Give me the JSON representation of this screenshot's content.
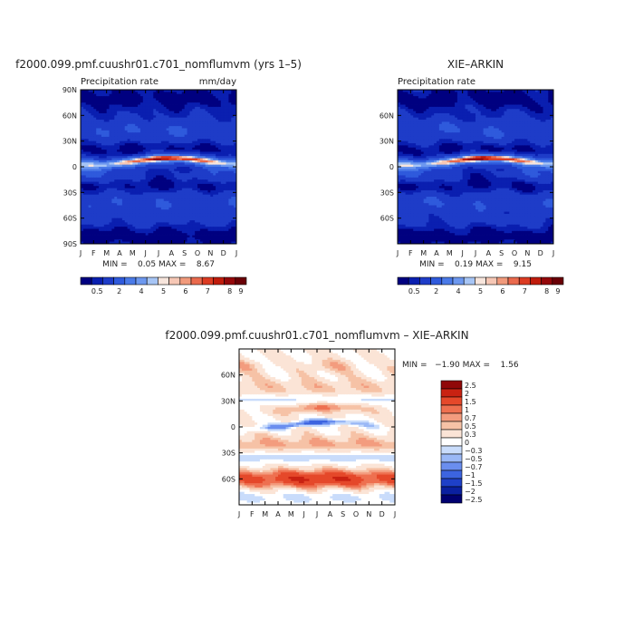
{
  "colors": {
    "precip_scale": [
      "#000080",
      "#0a1fb0",
      "#1e3cc8",
      "#2f5adc",
      "#4a7ae8",
      "#6d98ef",
      "#a7c5f5",
      "#f7e5dc",
      "#f6c7b5",
      "#f19a7c",
      "#ea6a4d",
      "#dc3b22",
      "#c01c0c",
      "#94080a",
      "#6a0006"
    ],
    "diff_scale": [
      "#000070",
      "#0a20a0",
      "#1e40c8",
      "#3c64e0",
      "#6a8eef",
      "#9ab8f6",
      "#c9dcfb",
      "#ffffff",
      "#fbe4d6",
      "#f6c2a6",
      "#f39c7e",
      "#ee7050",
      "#e5482a",
      "#c92212",
      "#900808"
    ]
  },
  "chart_data": [
    {
      "type": "heatmap",
      "title": "f2000.099.pmf.cuushr01.c701_nomflumvm (yrs 1–5)",
      "subtitle": "Precipitation rate",
      "units": "mm/day",
      "stats": "MIN =    0.05 MAX =    8.67",
      "x_ticks": [
        "J",
        "F",
        "M",
        "A",
        "M",
        "J",
        "J",
        "A",
        "S",
        "O",
        "N",
        "D",
        "J"
      ],
      "y_ticks": [
        "90N",
        "60N",
        "30N",
        "0",
        "30S",
        "60S",
        "90S"
      ],
      "y_values": [
        90,
        60,
        30,
        0,
        -30,
        -60,
        -90
      ],
      "ylim": [
        -90,
        90
      ],
      "x_range": [
        0,
        12
      ],
      "colorbar_labels": [
        "0.5",
        "2",
        "4",
        "5",
        "6",
        "7",
        "8",
        "9"
      ],
      "colorbar_label_index": [
        1,
        3,
        5,
        7,
        9,
        11,
        13,
        14
      ],
      "min": 0.05,
      "max": 8.67
    },
    {
      "type": "heatmap",
      "title": "XIE–ARKIN",
      "subtitle": "Precipitation rate",
      "stats": "MIN =    0.19 MAX =    9.15",
      "x_ticks": [
        "J",
        "F",
        "M",
        "A",
        "M",
        "J",
        "J",
        "A",
        "S",
        "O",
        "N",
        "D",
        "J"
      ],
      "y_ticks": [
        "60N",
        "30N",
        "0",
        "30S",
        "60S"
      ],
      "y_values": [
        60,
        30,
        0,
        -30,
        -60
      ],
      "ylim": [
        -90,
        90
      ],
      "x_range": [
        0,
        12
      ],
      "colorbar_labels": [
        "0.5",
        "2",
        "4",
        "5",
        "6",
        "7",
        "8",
        "9"
      ],
      "colorbar_label_index": [
        1,
        3,
        5,
        7,
        9,
        11,
        13,
        14
      ],
      "min": 0.19,
      "max": 9.15
    },
    {
      "type": "heatmap",
      "title": "f2000.099.pmf.cuushr01.c701_nomflumvm – XIE–ARKIN",
      "stats": "MIN =   −1.90 MAX =    1.56",
      "x_ticks": [
        "J",
        "F",
        "M",
        "A",
        "M",
        "J",
        "J",
        "A",
        "S",
        "O",
        "N",
        "D",
        "J"
      ],
      "y_ticks": [
        "60N",
        "30N",
        "0",
        "30S",
        "60S"
      ],
      "y_values": [
        60,
        30,
        0,
        -30,
        -60
      ],
      "ylim": [
        -90,
        90
      ],
      "x_range": [
        0,
        12
      ],
      "colorbar_labels": [
        "2.5",
        "2",
        "1.5",
        "1",
        "0.7",
        "0.5",
        "0.3",
        "0",
        "−0.3",
        "−0.5",
        "−0.7",
        "−1",
        "−1.5",
        "−2",
        "−2.5"
      ],
      "min": -1.9,
      "max": 1.56
    }
  ]
}
